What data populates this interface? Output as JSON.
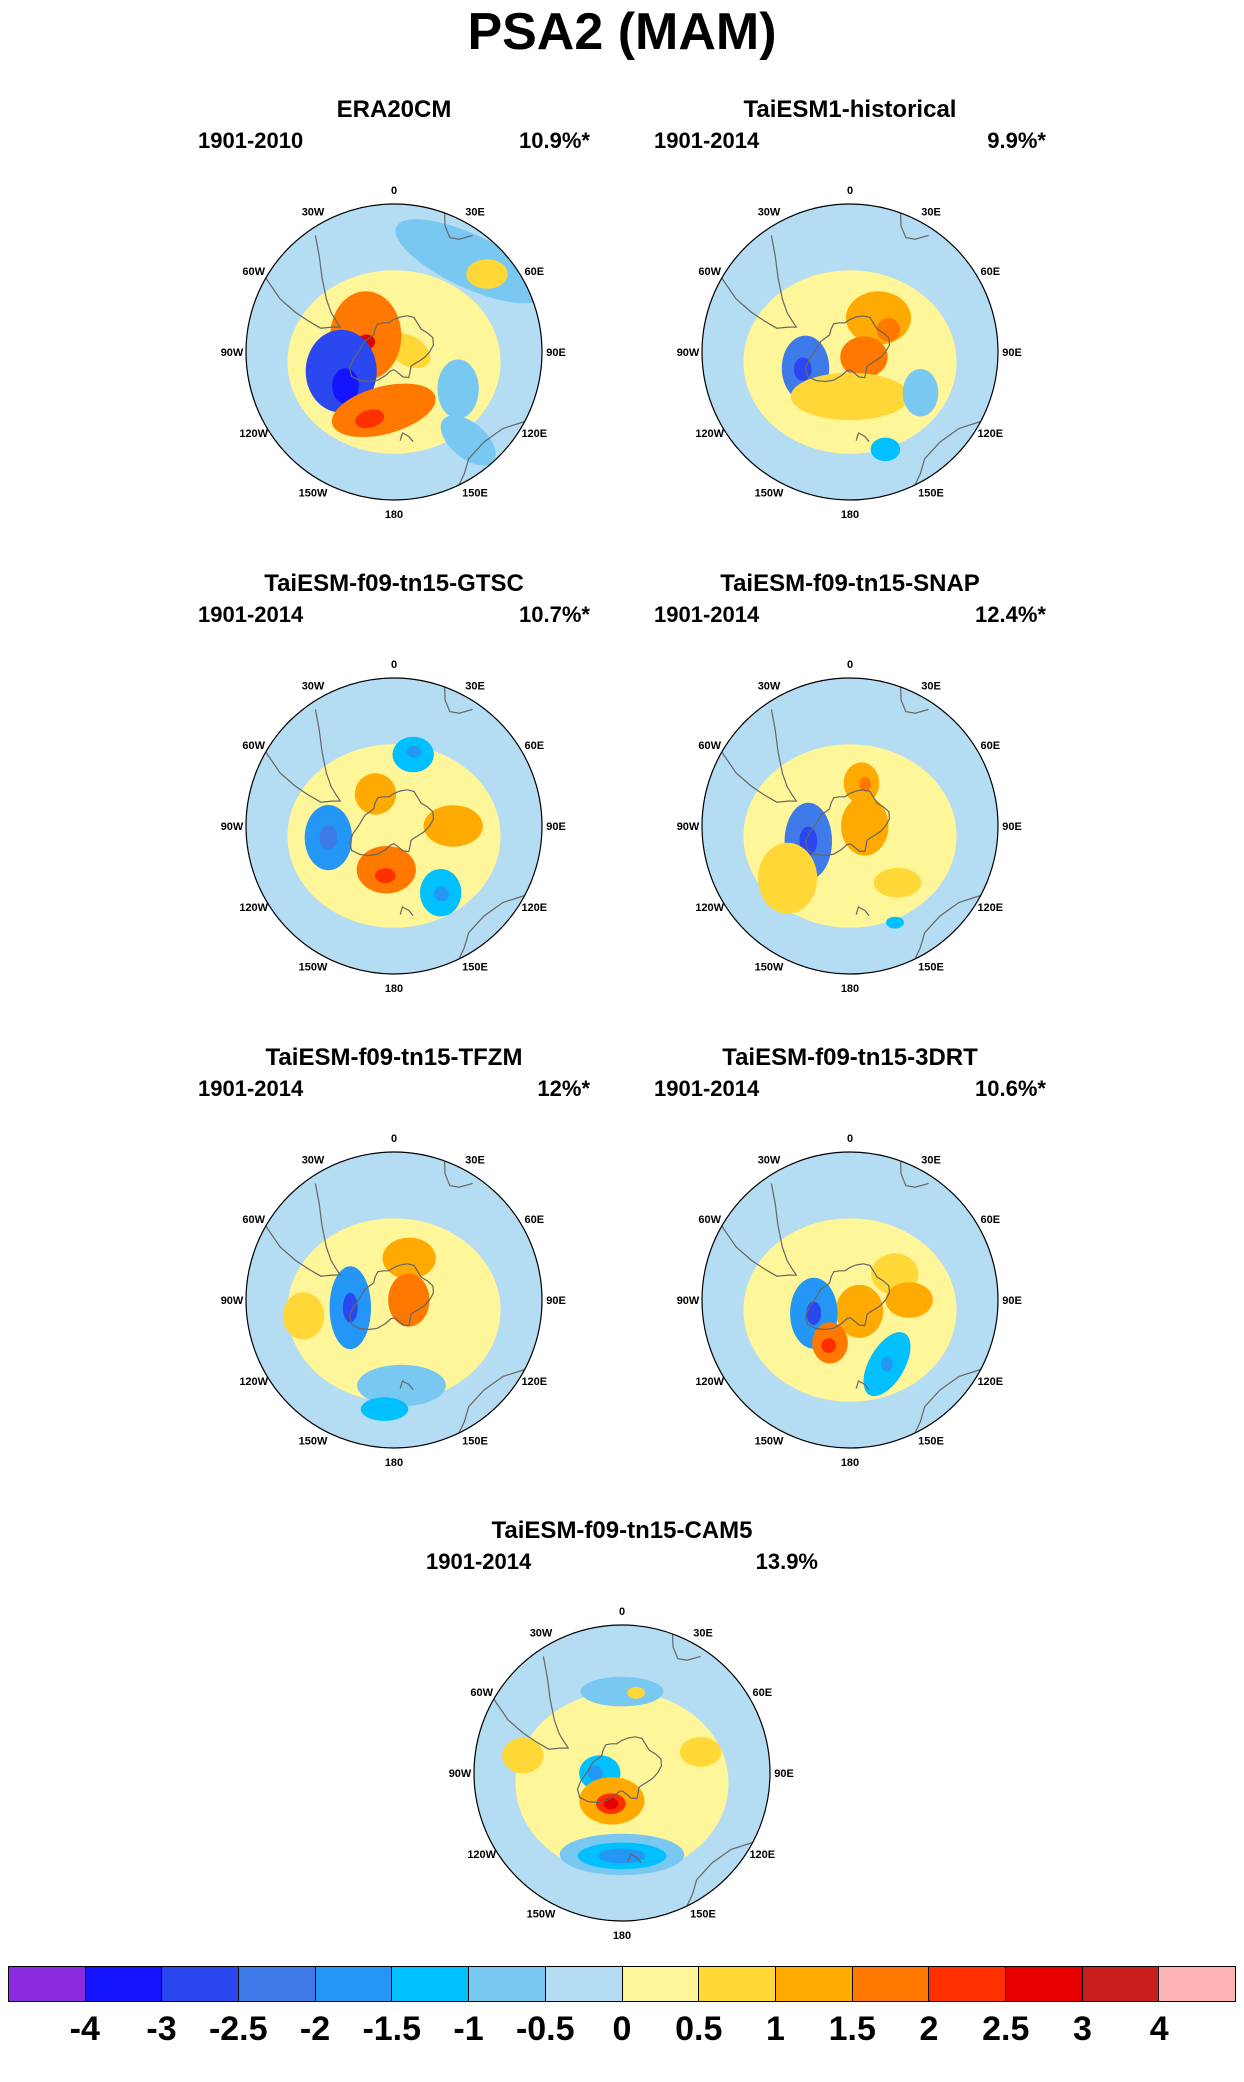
{
  "title": "PSA2 (MAM)",
  "longitude_labels": [
    "0",
    "30E",
    "60E",
    "90E",
    "120E",
    "150E",
    "180",
    "150W",
    "120W",
    "90W",
    "60W",
    "30W"
  ],
  "colorbar": {
    "colors": [
      "#8a2be2",
      "#1414ff",
      "#2b48f0",
      "#3e7ae8",
      "#2496f5",
      "#00c0ff",
      "#78c8f2",
      "#b4dcf2",
      "#fff599",
      "#ffd838",
      "#ffaa00",
      "#ff7800",
      "#ff3000",
      "#e80000",
      "#c81e1e",
      "#ffb4b4"
    ],
    "labels": [
      "-4",
      "-3",
      "-2.5",
      "-2",
      "-1.5",
      "-1",
      "-0.5",
      "0",
      "0.5",
      "1",
      "1.5",
      "2",
      "2.5",
      "3",
      "4"
    ]
  },
  "panels": [
    {
      "title": "ERA20CM",
      "period": "1901-2010",
      "variance": "10.9%*",
      "features": [
        {
          "lon": 85,
          "r": 0.1,
          "rx": 0.16,
          "ry": 0.1,
          "rot": 30,
          "level": 0.5
        },
        {
          "lon": 40,
          "r": 0.8,
          "rx": 0.55,
          "ry": 0.18,
          "rot": 25,
          "level": -0.5
        },
        {
          "lon": 50,
          "r": 0.82,
          "rx": 0.14,
          "ry": 0.1,
          "rot": 0,
          "level": 0.5
        },
        {
          "lon": 300,
          "r": 0.22,
          "rx": 0.24,
          "ry": 0.3,
          "rot": 0,
          "level": 1.5
        },
        {
          "lon": 290,
          "r": 0.2,
          "rx": 0.06,
          "ry": 0.05,
          "rot": 0,
          "level": 2.5
        },
        {
          "lon": 250,
          "r": 0.38,
          "rx": 0.24,
          "ry": 0.28,
          "rot": 0,
          "level": -2.5
        },
        {
          "lon": 235,
          "r": 0.4,
          "rx": 0.09,
          "ry": 0.12,
          "rot": 0,
          "level": -3
        },
        {
          "lon": 190,
          "r": 0.4,
          "rx": 0.36,
          "ry": 0.16,
          "rot": -15,
          "level": 1.5
        },
        {
          "lon": 200,
          "r": 0.48,
          "rx": 0.1,
          "ry": 0.06,
          "rot": -15,
          "level": 2
        },
        {
          "lon": 120,
          "r": 0.5,
          "rx": 0.14,
          "ry": 0.2,
          "rot": 0,
          "level": -0.5
        },
        {
          "lon": 140,
          "r": 0.78,
          "rx": 0.22,
          "ry": 0.12,
          "rot": 40,
          "level": -0.5
        }
      ]
    },
    {
      "title": "TaiESM1-historical",
      "period": "1901-2014",
      "variance": "9.9%*",
      "features": [
        {
          "lon": 40,
          "r": 0.3,
          "rx": 0.22,
          "ry": 0.18,
          "rot": 0,
          "level": 1
        },
        {
          "lon": 60,
          "r": 0.3,
          "rx": 0.08,
          "ry": 0.08,
          "rot": 0,
          "level": 1.5
        },
        {
          "lon": 110,
          "r": 0.1,
          "rx": 0.16,
          "ry": 0.14,
          "rot": 0,
          "level": 1.5
        },
        {
          "lon": 250,
          "r": 0.32,
          "rx": 0.16,
          "ry": 0.22,
          "rot": 0,
          "level": -2
        },
        {
          "lon": 250,
          "r": 0.34,
          "rx": 0.06,
          "ry": 0.08,
          "rot": 0,
          "level": -2.5
        },
        {
          "lon": 180,
          "r": 0.3,
          "rx": 0.4,
          "ry": 0.16,
          "rot": 0,
          "level": 0.5
        },
        {
          "lon": 120,
          "r": 0.55,
          "rx": 0.12,
          "ry": 0.16,
          "rot": 0,
          "level": -0.5
        },
        {
          "lon": 160,
          "r": 0.7,
          "rx": 0.1,
          "ry": 0.08,
          "rot": 0,
          "level": -1
        }
      ]
    },
    {
      "title": "TaiESM-f09-tn15-GTSC",
      "period": "1901-2014",
      "variance": "10.7%*",
      "features": [
        {
          "lon": 15,
          "r": 0.5,
          "rx": 0.14,
          "ry": 0.12,
          "rot": 0,
          "level": -1
        },
        {
          "lon": 15,
          "r": 0.52,
          "rx": 0.05,
          "ry": 0.04,
          "rot": 0,
          "level": -1.5
        },
        {
          "lon": 330,
          "r": 0.25,
          "rx": 0.14,
          "ry": 0.14,
          "rot": 0,
          "level": 1
        },
        {
          "lon": 90,
          "r": 0.4,
          "rx": 0.2,
          "ry": 0.14,
          "rot": 0,
          "level": 1
        },
        {
          "lon": 260,
          "r": 0.45,
          "rx": 0.16,
          "ry": 0.22,
          "rot": 0,
          "level": -1.5
        },
        {
          "lon": 260,
          "r": 0.45,
          "rx": 0.06,
          "ry": 0.08,
          "rot": 0,
          "level": -2
        },
        {
          "lon": 190,
          "r": 0.3,
          "rx": 0.2,
          "ry": 0.16,
          "rot": 0,
          "level": 1.5
        },
        {
          "lon": 190,
          "r": 0.34,
          "rx": 0.07,
          "ry": 0.05,
          "rot": 0,
          "level": 2
        },
        {
          "lon": 145,
          "r": 0.55,
          "rx": 0.14,
          "ry": 0.16,
          "rot": 0,
          "level": -1
        },
        {
          "lon": 145,
          "r": 0.56,
          "rx": 0.05,
          "ry": 0.05,
          "rot": 0,
          "level": -1.5
        }
      ]
    },
    {
      "title": "TaiESM-f09-tn15-SNAP",
      "period": "1901-2014",
      "variance": "12.4%*",
      "features": [
        {
          "lon": 15,
          "r": 0.3,
          "rx": 0.12,
          "ry": 0.14,
          "rot": 0,
          "level": 1
        },
        {
          "lon": 20,
          "r": 0.3,
          "rx": 0.04,
          "ry": 0.05,
          "rot": 0,
          "level": 1.5
        },
        {
          "lon": 90,
          "r": 0.1,
          "rx": 0.16,
          "ry": 0.2,
          "rot": 0,
          "level": 1
        },
        {
          "lon": 250,
          "r": 0.3,
          "rx": 0.16,
          "ry": 0.26,
          "rot": 0,
          "level": -2
        },
        {
          "lon": 250,
          "r": 0.3,
          "rx": 0.06,
          "ry": 0.1,
          "rot": 0,
          "level": -2.5
        },
        {
          "lon": 230,
          "r": 0.55,
          "rx": 0.2,
          "ry": 0.24,
          "rot": 0,
          "level": 0.5
        },
        {
          "lon": 140,
          "r": 0.5,
          "rx": 0.16,
          "ry": 0.1,
          "rot": 0,
          "level": 0.5
        },
        {
          "lon": 155,
          "r": 0.72,
          "rx": 0.06,
          "ry": 0.04,
          "rot": 0,
          "level": -1
        }
      ]
    },
    {
      "title": "TaiESM-f09-tn15-TFZM",
      "period": "1901-2014",
      "variance": "12%*",
      "features": [
        {
          "lon": 20,
          "r": 0.3,
          "rx": 0.18,
          "ry": 0.14,
          "rot": 0,
          "level": 1
        },
        {
          "lon": 90,
          "r": 0.1,
          "rx": 0.14,
          "ry": 0.18,
          "rot": 0,
          "level": 1.5
        },
        {
          "lon": 260,
          "r": 0.3,
          "rx": 0.14,
          "ry": 0.28,
          "rot": 0,
          "level": -1.5
        },
        {
          "lon": 260,
          "r": 0.3,
          "rx": 0.05,
          "ry": 0.1,
          "rot": 0,
          "level": -2.5
        },
        {
          "lon": 260,
          "r": 0.62,
          "rx": 0.14,
          "ry": 0.16,
          "rot": 0,
          "level": 0.5
        },
        {
          "lon": 175,
          "r": 0.58,
          "rx": 0.3,
          "ry": 0.14,
          "rot": 0,
          "level": -0.5
        },
        {
          "lon": 185,
          "r": 0.74,
          "rx": 0.16,
          "ry": 0.08,
          "rot": 0,
          "level": -1
        }
      ]
    },
    {
      "title": "TaiESM-f09-tn15-3DRT",
      "period": "1901-2014",
      "variance": "10.6%*",
      "features": [
        {
          "lon": 60,
          "r": 0.35,
          "rx": 0.16,
          "ry": 0.14,
          "rot": 0,
          "level": 0.5
        },
        {
          "lon": 90,
          "r": 0.4,
          "rx": 0.16,
          "ry": 0.12,
          "rot": 0,
          "level": 1
        },
        {
          "lon": 140,
          "r": 0.1,
          "rx": 0.16,
          "ry": 0.18,
          "rot": 0,
          "level": 1
        },
        {
          "lon": 250,
          "r": 0.26,
          "rx": 0.16,
          "ry": 0.24,
          "rot": 0,
          "level": -1.5
        },
        {
          "lon": 250,
          "r": 0.26,
          "rx": 0.05,
          "ry": 0.08,
          "rot": 0,
          "level": -2.5
        },
        {
          "lon": 205,
          "r": 0.32,
          "rx": 0.12,
          "ry": 0.14,
          "rot": 0,
          "level": 1.5
        },
        {
          "lon": 205,
          "r": 0.34,
          "rx": 0.05,
          "ry": 0.05,
          "rot": 0,
          "level": 2
        },
        {
          "lon": 150,
          "r": 0.5,
          "rx": 0.12,
          "ry": 0.24,
          "rot": 30,
          "level": -1
        },
        {
          "lon": 150,
          "r": 0.5,
          "rx": 0.04,
          "ry": 0.05,
          "rot": 0,
          "level": -1.5
        }
      ]
    },
    {
      "title": "TaiESM-f09-tn15-CAM5",
      "period": "1901-2014",
      "variance": "13.9%",
      "features": [
        {
          "lon": 0,
          "r": 0.55,
          "rx": 0.28,
          "ry": 0.1,
          "rot": 0,
          "level": -0.5
        },
        {
          "lon": 10,
          "r": 0.55,
          "rx": 0.06,
          "ry": 0.04,
          "rot": 0,
          "level": 0.5
        },
        {
          "lon": 75,
          "r": 0.55,
          "rx": 0.14,
          "ry": 0.1,
          "rot": 0,
          "level": 0.5
        },
        {
          "lon": 270,
          "r": 0.15,
          "rx": 0.14,
          "ry": 0.12,
          "rot": 0,
          "level": -1
        },
        {
          "lon": 270,
          "r": 0.18,
          "rx": 0.05,
          "ry": 0.05,
          "rot": 0,
          "level": -1.5
        },
        {
          "lon": 200,
          "r": 0.2,
          "rx": 0.22,
          "ry": 0.16,
          "rot": 0,
          "level": 1
        },
        {
          "lon": 200,
          "r": 0.22,
          "rx": 0.1,
          "ry": 0.07,
          "rot": 0,
          "level": 2
        },
        {
          "lon": 200,
          "r": 0.22,
          "rx": 0.05,
          "ry": 0.04,
          "rot": 0,
          "level": 2.5
        },
        {
          "lon": 180,
          "r": 0.55,
          "rx": 0.42,
          "ry": 0.14,
          "rot": 0,
          "level": -0.5
        },
        {
          "lon": 180,
          "r": 0.56,
          "rx": 0.3,
          "ry": 0.09,
          "rot": 0,
          "level": -1
        },
        {
          "lon": 180,
          "r": 0.56,
          "rx": 0.16,
          "ry": 0.05,
          "rot": 0,
          "level": -1.5
        },
        {
          "lon": 280,
          "r": 0.68,
          "rx": 0.14,
          "ry": 0.12,
          "rot": 0,
          "level": 0.5
        }
      ]
    }
  ]
}
